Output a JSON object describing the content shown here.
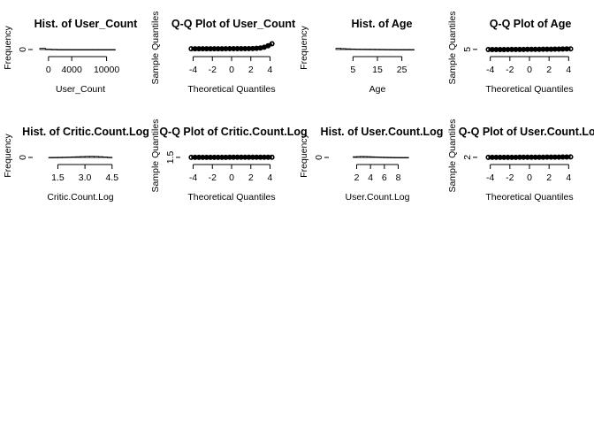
{
  "colors": {
    "hist_fill": "#c9c9ec",
    "ink": "#000000",
    "point_fill": "#ffffff"
  },
  "chart_data": [
    {
      "type": "bar",
      "title": "Hist. of User_Count",
      "xlabel": "User_Count",
      "ylabel": "Frequency",
      "xlim": [
        -1500,
        12500
      ],
      "xticks": [
        "0",
        "4000",
        "10000"
      ],
      "xtick_values": [
        0,
        4000,
        10000
      ],
      "yticks": [
        "0"
      ],
      "ytick_values": [
        0
      ],
      "ylim": [
        0,
        2000
      ],
      "bin_edges": [
        -1500,
        -500,
        500,
        1500,
        2500,
        3500,
        4500,
        5500,
        6500,
        7500,
        8500,
        9500,
        10500,
        11500
      ],
      "values": [
        200,
        60,
        30,
        8,
        4,
        2,
        1,
        1,
        1,
        0,
        0,
        0,
        0
      ]
    },
    {
      "type": "scatter",
      "title": "Q-Q Plot of User_Count",
      "xlabel": "Theoretical Quantiles",
      "ylabel": "Sample Quantiles",
      "xlim": [
        -4.6,
        4.6
      ],
      "xticks": [
        "-4",
        "-2",
        "0",
        "2",
        "4"
      ],
      "xtick_values": [
        -4,
        -2,
        0,
        2,
        4
      ],
      "yticks": [],
      "ylim": [
        -1000,
        12000
      ],
      "x": [
        -4.2,
        -3.8,
        -3.4,
        -3.0,
        -2.6,
        -2.2,
        -1.8,
        -1.4,
        -1.0,
        -0.6,
        -0.2,
        0.2,
        0.6,
        1.0,
        1.4,
        1.8,
        2.2,
        2.6,
        3.0,
        3.4,
        3.8,
        4.2
      ],
      "y": [
        4,
        4,
        5,
        5,
        5,
        6,
        7,
        8,
        10,
        13,
        17,
        24,
        35,
        55,
        90,
        150,
        260,
        470,
        900,
        1800,
        3600,
        6000
      ]
    },
    {
      "type": "bar",
      "title": "Hist. of Age",
      "xlabel": "Age",
      "ylabel": "Frequency",
      "xlim": [
        -2,
        32
      ],
      "xticks": [
        "5",
        "15",
        "25"
      ],
      "xtick_values": [
        5,
        15,
        25
      ],
      "yticks": [],
      "ylim": [
        0,
        2000
      ],
      "bin_edges": [
        -2,
        0,
        2,
        4,
        6,
        8,
        10,
        12,
        14,
        16,
        18,
        20,
        22,
        24,
        26,
        28,
        30
      ],
      "values": [
        200,
        160,
        120,
        90,
        70,
        60,
        55,
        50,
        40,
        30,
        20,
        12,
        8,
        5,
        3,
        2
      ]
    },
    {
      "type": "scatter",
      "title": "Q-Q Plot of Age",
      "xlabel": "Theoretical Quantiles",
      "ylabel": "Sample Quantiles",
      "xlim": [
        -4.6,
        4.6
      ],
      "xticks": [
        "-4",
        "-2",
        "0",
        "2",
        "4"
      ],
      "xtick_values": [
        -4,
        -2,
        0,
        2,
        4
      ],
      "yticks": [
        "5"
      ],
      "ytick_values": [
        5
      ],
      "ylim": [
        0,
        400
      ],
      "x": [
        -4.2,
        -3.8,
        -3.4,
        -3.0,
        -2.6,
        -2.2,
        -1.8,
        -1.4,
        -1.0,
        -0.6,
        -0.2,
        0.2,
        0.6,
        1.0,
        1.4,
        1.8,
        2.2,
        2.6,
        3.0,
        3.4,
        3.8,
        4.2
      ],
      "y": [
        0,
        0,
        0,
        1,
        1,
        2,
        3,
        4,
        5,
        6,
        7,
        8,
        9,
        10,
        11,
        12,
        14,
        16,
        18,
        21,
        24,
        27
      ]
    },
    {
      "type": "bar",
      "title": "Hist. of Critic.Count.Log",
      "xlabel": "Critic.Count.Log",
      "ylabel": "Frequency",
      "xlim": [
        0.5,
        5.0
      ],
      "xticks": [
        "1.5",
        "3.0",
        "4.5"
      ],
      "xtick_values": [
        1.5,
        3.0,
        4.5
      ],
      "yticks": [
        "0"
      ],
      "ytick_values": [
        0
      ],
      "ylim": [
        0,
        2000
      ],
      "bin_edges": [
        1.0,
        1.25,
        1.5,
        1.75,
        2.0,
        2.25,
        2.5,
        2.75,
        3.0,
        3.25,
        3.5,
        3.75,
        4.0,
        4.25,
        4.5
      ],
      "values": [
        14,
        22,
        34,
        50,
        70,
        95,
        120,
        150,
        175,
        185,
        170,
        130,
        80,
        30
      ]
    },
    {
      "type": "scatter",
      "title": "Q-Q Plot of Critic.Count.Log",
      "xlabel": "Theoretical Quantiles",
      "ylabel": "Sample Quantiles",
      "xlim": [
        -4.6,
        4.6
      ],
      "xticks": [
        "-4",
        "-2",
        "0",
        "2",
        "4"
      ],
      "xtick_values": [
        -4,
        -2,
        0,
        2,
        4
      ],
      "yticks": [
        "1.5"
      ],
      "ytick_values": [
        1.5
      ],
      "ylim": [
        0,
        200
      ],
      "x": [
        -4.2,
        -3.8,
        -3.4,
        -3.0,
        -2.6,
        -2.2,
        -1.8,
        -1.4,
        -1.0,
        -0.6,
        -0.2,
        0.2,
        0.6,
        1.0,
        1.4,
        1.8,
        2.2,
        2.6,
        3.0,
        3.4,
        3.8,
        4.2
      ],
      "y": [
        1.1,
        1.2,
        1.4,
        1.6,
        1.9,
        2.1,
        2.4,
        2.6,
        2.8,
        3.0,
        3.2,
        3.3,
        3.4,
        3.6,
        3.7,
        3.9,
        4.0,
        4.1,
        4.3,
        4.4,
        4.5,
        4.6
      ]
    },
    {
      "type": "bar",
      "title": "Hist. of User.Count.Log",
      "xlabel": "User.Count.Log",
      "ylabel": "Frequency",
      "xlim": [
        -1,
        11
      ],
      "xticks": [
        "2",
        "4",
        "6",
        "8"
      ],
      "xtick_values": [
        2,
        4,
        6,
        8
      ],
      "yticks": [
        "0"
      ],
      "ytick_values": [
        0
      ],
      "ylim": [
        0,
        2000
      ],
      "bin_edges": [
        1.5,
        2,
        2.5,
        3,
        3.5,
        4,
        4.5,
        5,
        5.5,
        6,
        6.5,
        7,
        7.5,
        8,
        8.5,
        9,
        9.5
      ],
      "values": [
        120,
        150,
        170,
        160,
        140,
        110,
        90,
        70,
        55,
        40,
        28,
        18,
        10,
        6,
        3,
        2
      ]
    },
    {
      "type": "scatter",
      "title": "Q-Q Plot of User.Count.Log",
      "xlabel": "Theoretical Quantiles",
      "ylabel": "Sample Quantiles",
      "xlim": [
        -4.6,
        4.6
      ],
      "xticks": [
        "-4",
        "-2",
        "0",
        "2",
        "4"
      ],
      "xtick_values": [
        -4,
        -2,
        0,
        2,
        4
      ],
      "yticks": [
        "2"
      ],
      "ytick_values": [
        2
      ],
      "ylim": [
        0,
        200
      ],
      "x": [
        -4.2,
        -3.8,
        -3.4,
        -3.0,
        -2.6,
        -2.2,
        -1.8,
        -1.4,
        -1.0,
        -0.6,
        -0.2,
        0.2,
        0.6,
        1.0,
        1.4,
        1.8,
        2.2,
        2.6,
        3.0,
        3.4,
        3.8,
        4.2
      ],
      "y": [
        1.4,
        1.5,
        1.6,
        1.8,
        2.0,
        2.3,
        2.6,
        2.9,
        3.2,
        3.5,
        3.8,
        4.1,
        4.4,
        4.7,
        5.1,
        5.5,
        6.0,
        6.5,
        7.1,
        7.8,
        8.6,
        9.4
      ]
    }
  ]
}
